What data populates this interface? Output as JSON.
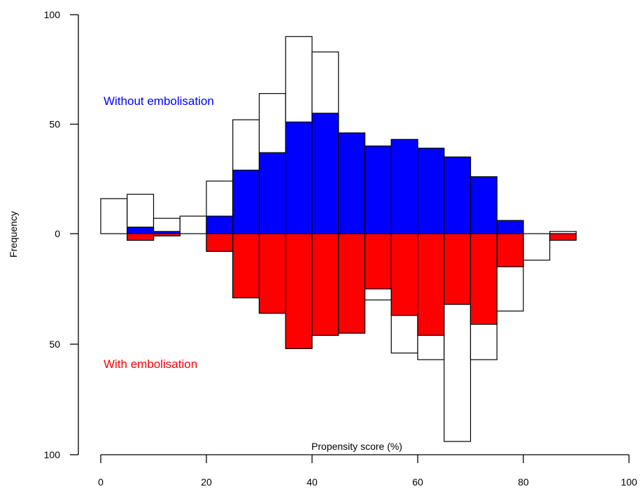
{
  "chart_data": {
    "type": "bar",
    "subtype": "mirrored-histogram",
    "title": "",
    "xlabel": "Propensity score (%)",
    "ylabel": "Frequency",
    "xlim": [
      0,
      100
    ],
    "ylim_upper": [
      0,
      100
    ],
    "ylim_lower": [
      0,
      100
    ],
    "x_ticks": [
      0,
      20,
      40,
      60,
      80,
      100
    ],
    "y_ticks": [
      {
        "value": 100,
        "label": "100"
      },
      {
        "value": 50,
        "label": "50"
      },
      {
        "value": 0,
        "label": "0"
      },
      {
        "value": -50,
        "label": "50"
      },
      {
        "value": -100,
        "label": "100"
      }
    ],
    "bin_width": 5,
    "bin_starts": [
      0,
      5,
      10,
      15,
      20,
      25,
      30,
      35,
      40,
      45,
      50,
      55,
      60,
      65,
      70,
      75,
      80,
      85
    ],
    "series": [
      {
        "name": "Without embolisation",
        "direction": "up",
        "color": "#0000ff",
        "unmatched": [
          16,
          18,
          7,
          8,
          24,
          52,
          64,
          90,
          83,
          46,
          40,
          43,
          39,
          35,
          26,
          6,
          0,
          1
        ],
        "matched": [
          0,
          3,
          1,
          0,
          8,
          29,
          37,
          51,
          55,
          46,
          40,
          43,
          39,
          35,
          26,
          6,
          0,
          0
        ]
      },
      {
        "name": "With embolisation",
        "direction": "down",
        "color": "#ff0000",
        "unmatched": [
          0,
          3,
          1,
          0,
          8,
          29,
          36,
          52,
          46,
          45,
          30,
          54,
          57,
          94,
          57,
          35,
          12,
          0
        ],
        "matched": [
          0,
          3,
          1,
          0,
          8,
          29,
          36,
          52,
          46,
          45,
          25,
          37,
          46,
          32,
          41,
          15,
          0,
          3
        ]
      }
    ],
    "grid": false,
    "legend": "none"
  }
}
